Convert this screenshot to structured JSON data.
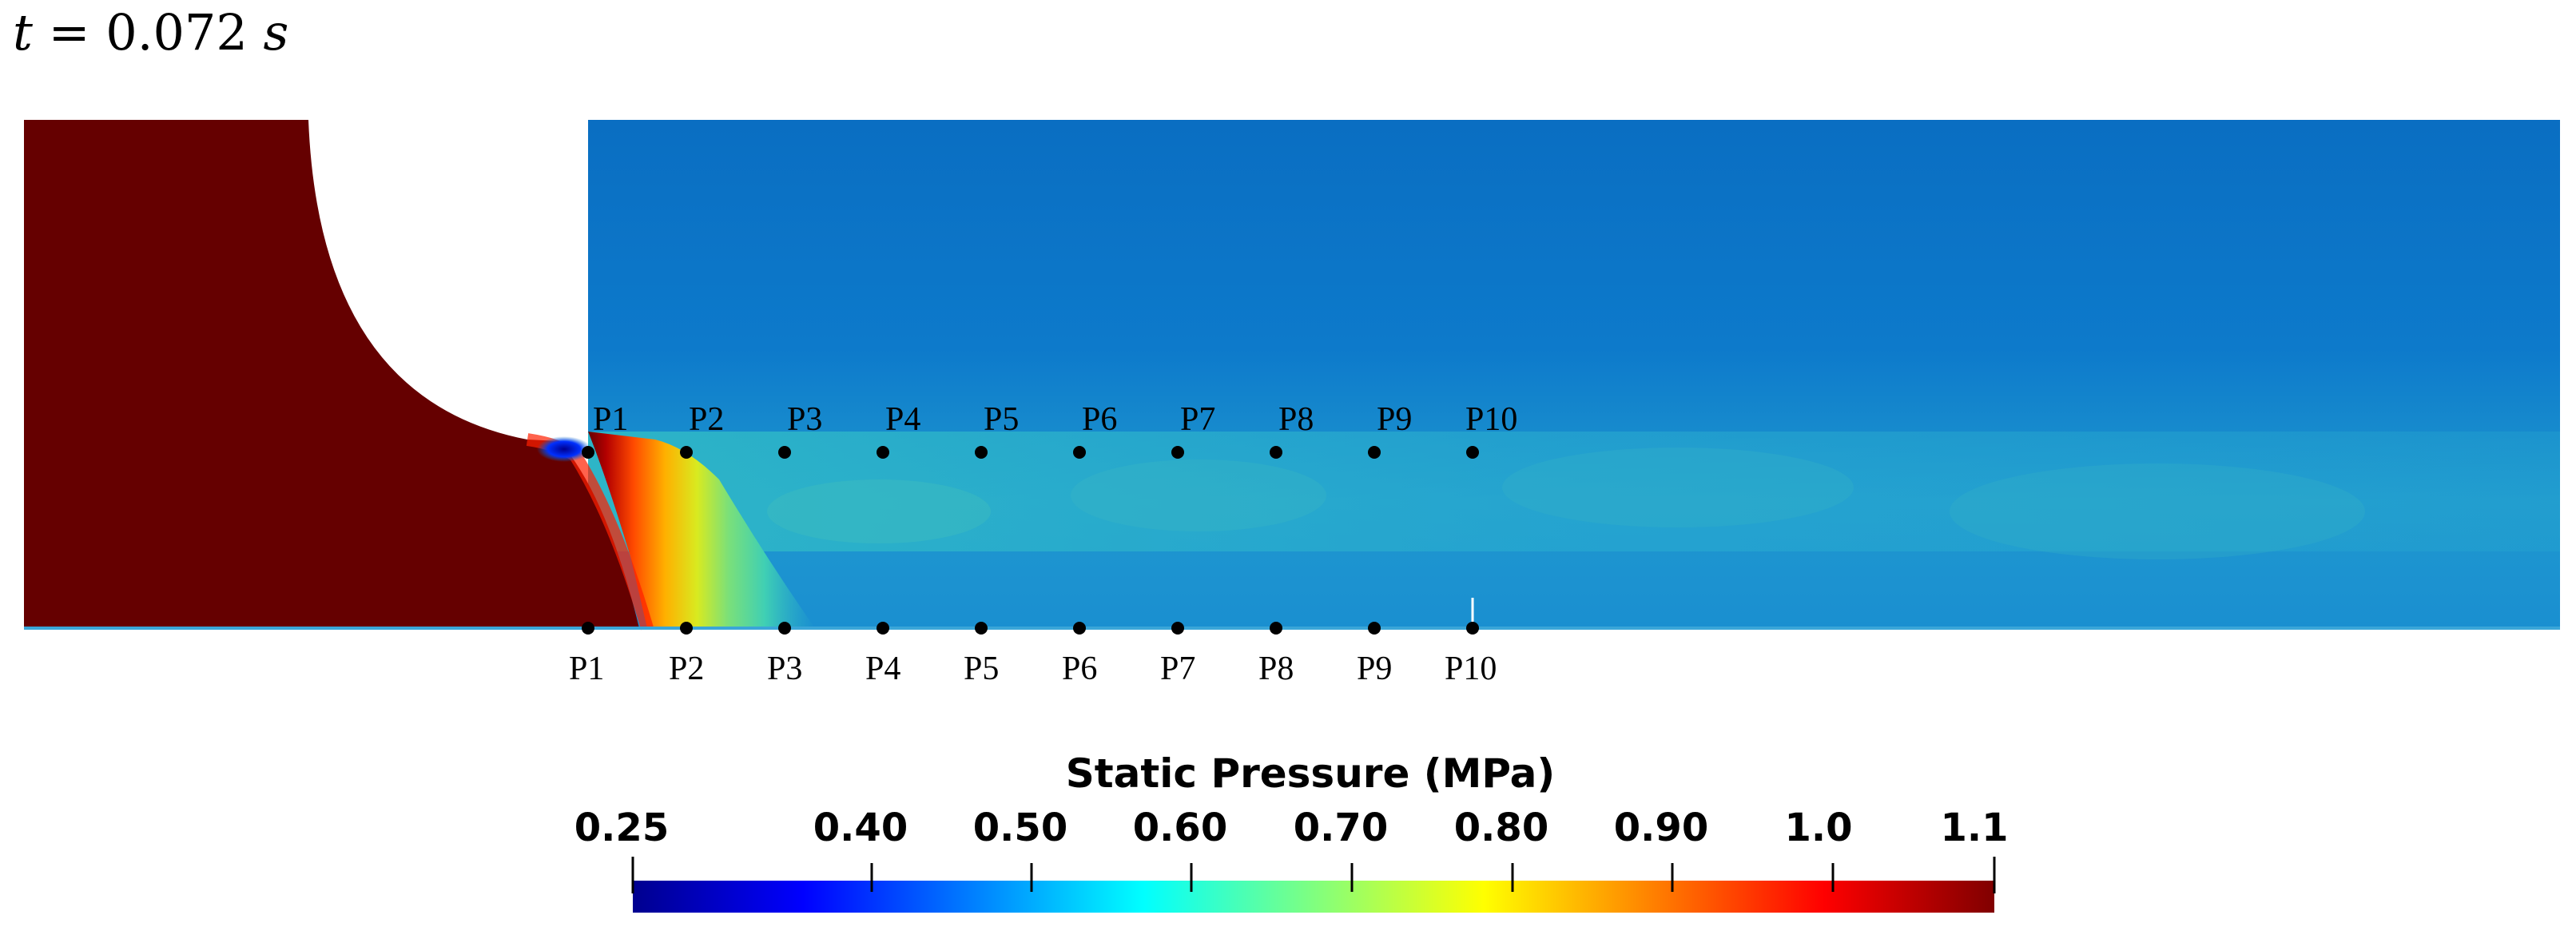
{
  "title": {
    "var": "t",
    "equals": " = ",
    "value": "0.072",
    "unit": "s"
  },
  "probes": {
    "top": [
      {
        "label": "P1"
      },
      {
        "label": "P2"
      },
      {
        "label": "P3"
      },
      {
        "label": "P4"
      },
      {
        "label": "P5"
      },
      {
        "label": "P6"
      },
      {
        "label": "P7"
      },
      {
        "label": "P8"
      },
      {
        "label": "P9"
      },
      {
        "label": "P10"
      }
    ],
    "bottom": [
      {
        "label": "P1"
      },
      {
        "label": "P2"
      },
      {
        "label": "P3"
      },
      {
        "label": "P4"
      },
      {
        "label": "P5"
      },
      {
        "label": "P6"
      },
      {
        "label": "P7"
      },
      {
        "label": "P8"
      },
      {
        "label": "P9"
      },
      {
        "label": "P10"
      }
    ]
  },
  "colorbar": {
    "title": "Static Pressure (MPa)",
    "ticks": [
      "0.25",
      "0.40",
      "0.50",
      "0.60",
      "0.70",
      "0.80",
      "0.90",
      "1.0",
      "1.1"
    ]
  },
  "colors": {
    "high_pressure": "#650000",
    "field_base": "#0a6cc0",
    "jet_core": "#2fb6c8"
  }
}
